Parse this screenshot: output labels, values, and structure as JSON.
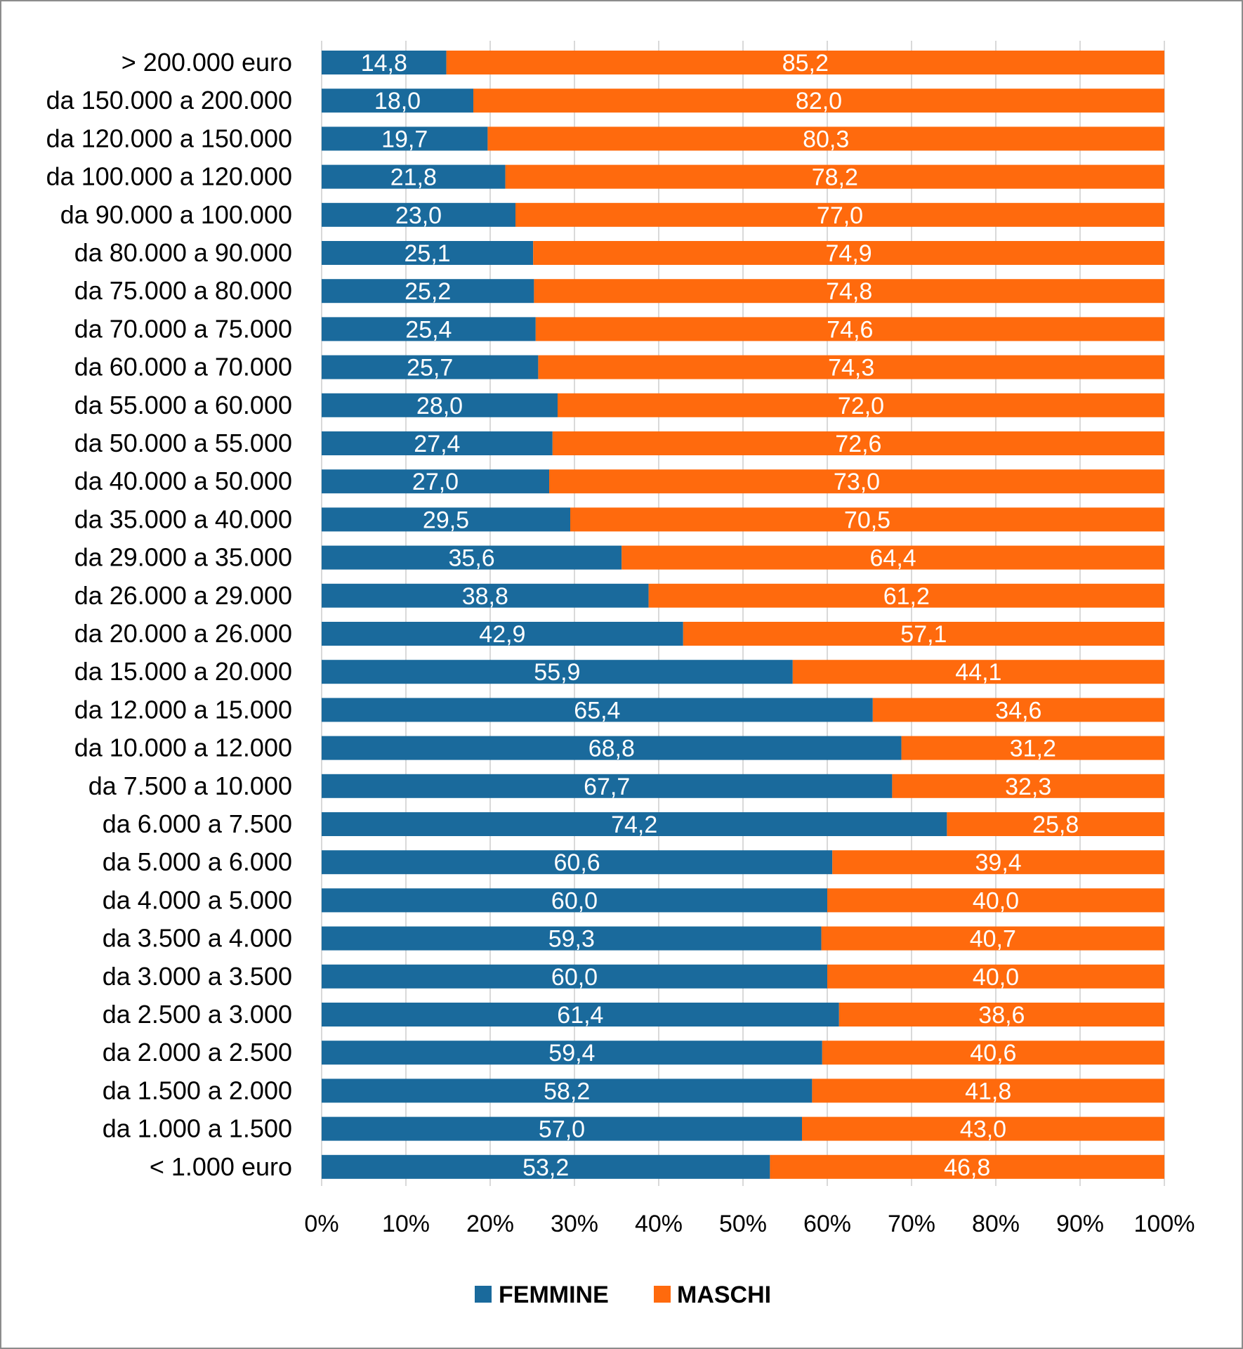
{
  "chart_data": {
    "type": "bar",
    "orientation": "horizontal",
    "stacked": "percent",
    "categories": [
      "> 200.000  euro",
      "da 150.000 a 200.000",
      "da 120.000 a 150.000",
      "da 100.000 a 120.000",
      "da 90.000 a 100.000",
      "da 80.000 a 90.000",
      "da 75.000 a 80.000",
      "da 70.000 a 75.000",
      "da 60.000 a 70.000",
      "da 55.000 a 60.000",
      "da 50.000 a 55.000",
      "da 40.000 a 50.000",
      "da 35.000 a 40.000",
      "da 29.000 a 35.000",
      "da 26.000 a 29.000",
      "da 20.000 a 26.000",
      "da 15.000 a 20.000",
      "da 12.000 a 15.000",
      "da 10.000 a 12.000",
      "da 7.500 a 10.000",
      "da 6.000 a 7.500",
      "da 5.000 a 6.000",
      "da 4.000 a 5.000",
      "da 3.500 a 4.000",
      "da 3.000 a 3.500",
      "da 2.500 a 3.000",
      "da 2.000 a 2.500",
      "da 1.500 a 2.000",
      "da 1.000 a 1.500",
      "< 1.000 euro"
    ],
    "series": [
      {
        "name": "FEMMINE",
        "color": "#1a6a9c",
        "values": [
          14.8,
          18.0,
          19.7,
          21.8,
          23.0,
          25.1,
          25.2,
          25.4,
          25.7,
          28.0,
          27.4,
          27.0,
          29.5,
          35.6,
          38.8,
          42.9,
          55.9,
          65.4,
          68.8,
          67.7,
          74.2,
          60.6,
          60.0,
          59.3,
          60.0,
          61.4,
          59.4,
          58.2,
          57.0,
          53.2
        ],
        "labels": [
          "14,8",
          "18,0",
          "19,7",
          "21,8",
          "23,0",
          "25,1",
          "25,2",
          "25,4",
          "25,7",
          "28,0",
          "27,4",
          "27,0",
          "29,5",
          "35,6",
          "38,8",
          "42,9",
          "55,9",
          "65,4",
          "68,8",
          "67,7",
          "74,2",
          "60,6",
          "60,0",
          "59,3",
          "60,0",
          "61,4",
          "59,4",
          "58,2",
          "57,0",
          "53,2"
        ]
      },
      {
        "name": "MASCHI",
        "color": "#ff6a0d",
        "values": [
          85.2,
          82.0,
          80.3,
          78.2,
          77.0,
          74.9,
          74.8,
          74.6,
          74.3,
          72.0,
          72.6,
          73.0,
          70.5,
          64.4,
          61.2,
          57.1,
          44.1,
          34.6,
          31.2,
          32.3,
          25.8,
          39.4,
          40.0,
          40.7,
          40.0,
          38.6,
          40.6,
          41.8,
          43.0,
          46.8
        ],
        "labels": [
          "85,2",
          "82,0",
          "80,3",
          "78,2",
          "77,0",
          "74,9",
          "74,8",
          "74,6",
          "74,3",
          "72,0",
          "72,6",
          "73,0",
          "70,5",
          "64,4",
          "61,2",
          "57,1",
          "44,1",
          "34,6",
          "31,2",
          "32,3",
          "25,8",
          "39,4",
          "40,0",
          "40,7",
          "40,0",
          "38,6",
          "40,6",
          "41,8",
          "43,0",
          "46,8"
        ]
      }
    ],
    "xlim": [
      0,
      100
    ],
    "xticks": [
      0,
      10,
      20,
      30,
      40,
      50,
      60,
      70,
      80,
      90,
      100
    ],
    "xtick_labels": [
      "0%",
      "10%",
      "20%",
      "30%",
      "40%",
      "50%",
      "60%",
      "70%",
      "80%",
      "90%",
      "100%"
    ],
    "grid": true,
    "legend_position": "bottom-center"
  }
}
